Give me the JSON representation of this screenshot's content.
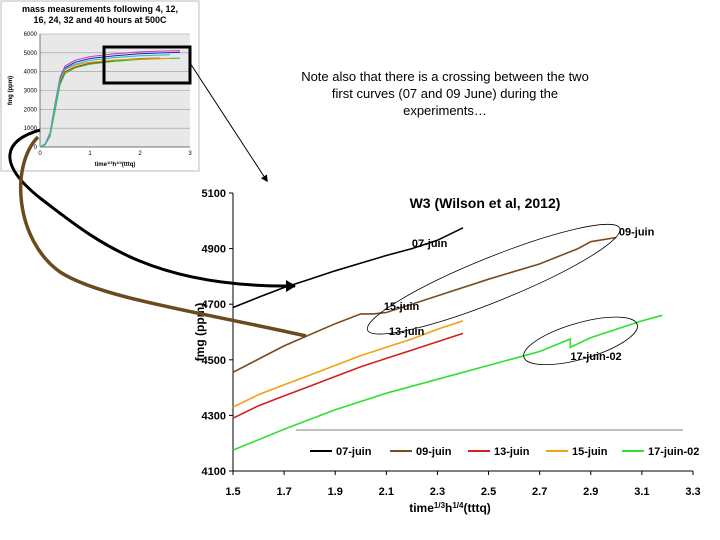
{
  "note": "Note also that there is a crossing between the two first curves (07 and 09 June) during the experiments…",
  "chart_data": [
    {
      "type": "line",
      "title": "mass measurements following 4, 12, 16, 24, 32 and 40 hours at 500C",
      "title_lines": [
        "mass measurements following 4, 12,",
        "16, 24, 32 and 40 hours at 500C"
      ],
      "ylabel": "fmg (ppm)",
      "xlabel_main": "time",
      "xlabel_sup1": "1/3",
      "xlabel_mid": "h",
      "xlabel_sup2": "1/4",
      "xlabel_end": "(tttq)",
      "xlim": [
        0,
        3
      ],
      "ylim": [
        0,
        6000
      ],
      "x_ticks": [
        "0",
        "1",
        "2",
        "3"
      ],
      "y_ticks": [
        "0",
        "1000",
        "2000",
        "3000",
        "4000",
        "5000",
        "6000"
      ],
      "grid": true,
      "series": [
        {
          "color": "#1f1fd0",
          "x": [
            0,
            0.1,
            0.2,
            0.3,
            0.4,
            0.5,
            0.7,
            1.0,
            1.5,
            2.0,
            2.5,
            2.8
          ],
          "y": [
            0,
            150,
            700,
            2200,
            3600,
            4200,
            4500,
            4700,
            4850,
            4950,
            5000,
            5030
          ]
        },
        {
          "color": "#d02020",
          "x": [
            0,
            0.1,
            0.2,
            0.3,
            0.4,
            0.5,
            0.7,
            1.0,
            1.5,
            2.0,
            2.4
          ],
          "y": [
            0,
            120,
            600,
            2000,
            3400,
            4000,
            4250,
            4450,
            4600,
            4700,
            4720
          ]
        },
        {
          "color": "#20c020",
          "x": [
            0,
            0.1,
            0.2,
            0.3,
            0.4,
            0.5,
            0.7,
            1.0,
            1.5,
            2.0,
            2.5,
            2.8
          ],
          "y": [
            0,
            100,
            550,
            1900,
            3300,
            3900,
            4200,
            4400,
            4550,
            4650,
            4700,
            4720
          ]
        },
        {
          "color": "#e0a000",
          "x": [
            0,
            0.1,
            0.2,
            0.3,
            0.4,
            0.5,
            0.7,
            1.0,
            1.5,
            2.0,
            2.6
          ],
          "y": [
            0,
            130,
            650,
            2100,
            3500,
            4100,
            4350,
            4500,
            4620,
            4680,
            4700
          ]
        },
        {
          "color": "#c040c0",
          "x": [
            0,
            0.1,
            0.2,
            0.3,
            0.4,
            0.5,
            0.7,
            1.0,
            1.5,
            2.0,
            2.5,
            2.8
          ],
          "y": [
            0,
            160,
            750,
            2300,
            3700,
            4300,
            4600,
            4800,
            4950,
            5050,
            5100,
            5120
          ]
        },
        {
          "color": "#20c0c0",
          "x": [
            0,
            0.1,
            0.2,
            0.3,
            0.4,
            0.5,
            0.7,
            1.0,
            1.5,
            2.0,
            2.6
          ],
          "y": [
            0,
            140,
            680,
            2150,
            3550,
            4150,
            4400,
            4600,
            4750,
            4850,
            4900
          ]
        }
      ]
    },
    {
      "type": "line",
      "title": "W3 (Wilson et al, 2012)",
      "ylabel": "fmg (ppm)",
      "xlabel_main": "time",
      "xlabel_sup1": "1/3",
      "xlabel_mid": "h",
      "xlabel_sup2": "1/4",
      "xlabel_end": "(tttq)",
      "xlim": [
        1.5,
        3.3
      ],
      "ylim": [
        4100,
        5100
      ],
      "x_ticks": [
        "1.5",
        "1.7",
        "1.9",
        "2.1",
        "2.3",
        "2.5",
        "2.7",
        "2.9",
        "3.1",
        "3.3"
      ],
      "y_ticks": [
        "4100",
        "4300",
        "4500",
        "4700",
        "4900",
        "5100"
      ],
      "legend_position": "bottom",
      "series": [
        {
          "name": "07-juin",
          "color": "#000000",
          "x": [
            1.5,
            1.6,
            1.7,
            1.8,
            1.9,
            2.0,
            2.1,
            2.2,
            2.3,
            2.4
          ],
          "y": [
            4688,
            4725,
            4760,
            4790,
            4820,
            4848,
            4875,
            4900,
            4930,
            4975
          ]
        },
        {
          "name": "09-juin",
          "color": "#7a4a20",
          "x": [
            1.5,
            1.7,
            1.9,
            2.0,
            2.05,
            2.1,
            2.3,
            2.5,
            2.7,
            2.85,
            2.9,
            3.0
          ],
          "y": [
            4455,
            4550,
            4630,
            4665,
            4665,
            4670,
            4730,
            4790,
            4845,
            4900,
            4925,
            4940
          ]
        },
        {
          "name": "13-juin",
          "color": "#d02020",
          "x": [
            1.5,
            1.6,
            1.7,
            1.8,
            1.9,
            2.0,
            2.1,
            2.2,
            2.3,
            2.4
          ],
          "y": [
            4290,
            4335,
            4370,
            4405,
            4440,
            4475,
            4505,
            4535,
            4565,
            4595
          ]
        },
        {
          "name": "15-juin",
          "color": "#f0a010",
          "x": [
            1.5,
            1.6,
            1.7,
            1.8,
            1.9,
            2.0,
            2.1,
            2.2,
            2.3,
            2.4
          ],
          "y": [
            4330,
            4375,
            4410,
            4445,
            4480,
            4515,
            4545,
            4575,
            4610,
            4640
          ]
        },
        {
          "name": "17-juin-02",
          "color": "#30e030",
          "x": [
            1.5,
            1.7,
            1.9,
            2.1,
            2.3,
            2.5,
            2.7,
            2.82,
            2.82,
            2.9,
            3.0,
            3.1,
            3.18
          ],
          "y": [
            4175,
            4250,
            4320,
            4380,
            4430,
            4480,
            4530,
            4575,
            4545,
            4580,
            4610,
            4640,
            4660
          ]
        }
      ],
      "annotations": [
        {
          "text": "07-juin",
          "x": 2.2,
          "y": 4905
        },
        {
          "text": "09-juin",
          "x": 3.01,
          "y": 4948
        },
        {
          "text": "15-juin",
          "x": 2.09,
          "y": 4680
        },
        {
          "text": "13-juin",
          "x": 2.11,
          "y": 4590
        },
        {
          "text": "17-juin-02",
          "x": 2.82,
          "y": 4500
        }
      ]
    }
  ]
}
